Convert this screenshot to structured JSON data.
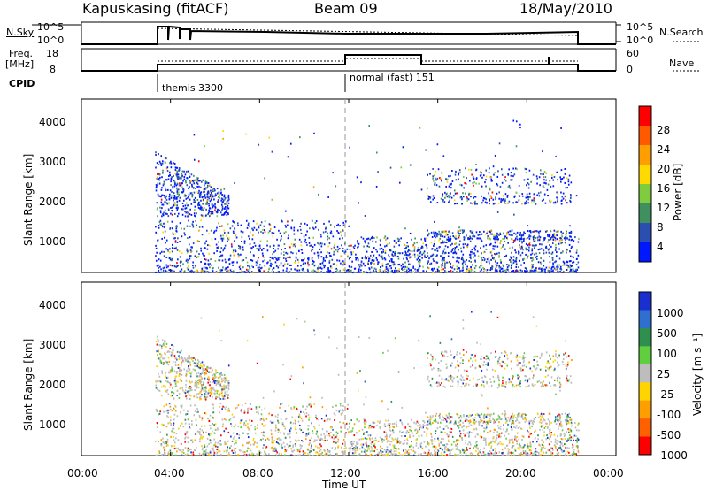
{
  "header": {
    "station": "Kapuskasing (fitACF)",
    "beam": "Beam 09",
    "date": "18/May/2010"
  },
  "summary": {
    "nsky_label": "N.Sky",
    "nsky_ticks": [
      "10^5",
      "10^0"
    ],
    "nsearch_label": "N.Search",
    "freq_label_1": "Freq.",
    "freq_label_2": "[MHz]",
    "freq_ticks": [
      "18",
      "8"
    ],
    "nave_ticks": [
      "60",
      "0"
    ],
    "nave_label": "Nave",
    "cpid_label": "CPID",
    "cpid_entries": [
      {
        "name": "themis 3300",
        "start_hour": 3.6
      },
      {
        "name": "normal (fast) 151",
        "start_hour": 12.0
      }
    ]
  },
  "chart_data": [
    {
      "type": "heatmap",
      "title": "Power",
      "xlabel": "Time UT",
      "ylabel": "Slant Range [km]",
      "xlim_hours": [
        0,
        24
      ],
      "ylim_km": [
        180,
        4500
      ],
      "xticks": [
        "00:00",
        "04:00",
        "08:00",
        "12:00",
        "16:00",
        "20:00",
        "00:00"
      ],
      "yticks": [
        "1000",
        "2000",
        "3000",
        "4000"
      ],
      "colorbar": {
        "label": "Power [dB]",
        "ticks": [
          "28",
          "24",
          "20",
          "16",
          "12",
          "8",
          "4"
        ],
        "colors": [
          "#ff0000",
          "#ff5a00",
          "#ff9e00",
          "#ffd900",
          "#7fcc3f",
          "#3f8f5f",
          "#2a4fb0",
          "#0018ff"
        ]
      },
      "data_extent_hours": [
        3.3,
        22.3
      ]
    },
    {
      "type": "heatmap",
      "title": "Velocity",
      "xlabel": "Time UT",
      "ylabel": "Slant Range [km]",
      "xlim_hours": [
        0,
        24
      ],
      "ylim_km": [
        180,
        4500
      ],
      "xticks": [
        "00:00",
        "04:00",
        "08:00",
        "12:00",
        "16:00",
        "20:00",
        "00:00"
      ],
      "yticks": [
        "1000",
        "2000",
        "3000",
        "4000"
      ],
      "colorbar": {
        "label": "Velocity [m s⁻¹]",
        "ticks": [
          "1000",
          "500",
          "100",
          "25",
          "-25",
          "-100",
          "-500",
          "-1000"
        ],
        "colors": [
          "#1a2fd0",
          "#2f6fd0",
          "#2f8f4f",
          "#5fcf3f",
          "#bdbdbd",
          "#ffd400",
          "#ff9e00",
          "#ff6000",
          "#ff0000"
        ]
      },
      "data_extent_hours": [
        3.3,
        22.3
      ]
    }
  ]
}
